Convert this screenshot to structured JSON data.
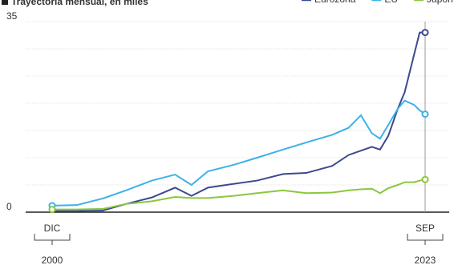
{
  "chart_data": {
    "type": "line",
    "title": "Trayectoria mensual, en miles",
    "x": [
      "2000-12",
      "2002-06",
      "2004-01",
      "2005-06",
      "2007-01",
      "2008-06",
      "2009-06",
      "2010-06",
      "2012-01",
      "2013-06",
      "2015-01",
      "2016-06",
      "2018-01",
      "2019-01",
      "2019-10",
      "2020-06",
      "2020-12",
      "2021-06",
      "2022-01",
      "2022-06",
      "2023-01",
      "2023-05",
      "2023-09"
    ],
    "series": [
      {
        "name": "Eurozona",
        "color": "#3b4a91",
        "values": [
          0.2,
          0.2,
          0.3,
          1.5,
          2.7,
          4.5,
          3,
          4.5,
          5.2,
          5.8,
          7,
          7.2,
          8.5,
          10.5,
          11.3,
          12,
          11.5,
          14,
          19,
          22,
          29,
          33,
          33
        ]
      },
      {
        "name": "EU",
        "color": "#3db2e8",
        "values": [
          1.2,
          1.3,
          2.5,
          4,
          5.8,
          6.9,
          5,
          7.5,
          8.7,
          10,
          11.5,
          12.8,
          14.2,
          15.5,
          17.8,
          14.5,
          13.5,
          16,
          19,
          20.5,
          19.7,
          18.7,
          18
        ]
      },
      {
        "name": "Japón",
        "color": "#8cc63f",
        "values": [
          0.5,
          0.5,
          0.6,
          1.5,
          2,
          2.8,
          2.6,
          2.6,
          3,
          3.5,
          4,
          3.5,
          3.6,
          4,
          4.2,
          4.3,
          3.5,
          4.4,
          5,
          5.5,
          5.5,
          5.8,
          6
        ]
      }
    ],
    "xlim": [
      "2000-12",
      "2023-09"
    ],
    "xticks": [
      {
        "value": "2000-12",
        "month": "DIC",
        "year": "2000"
      },
      {
        "value": "2023-09",
        "month": "SEP",
        "year": "2023"
      }
    ],
    "ylim": [
      0,
      35
    ],
    "yticks": [
      0,
      35
    ],
    "ygrid": [
      5,
      10,
      15,
      20,
      25,
      30,
      35
    ],
    "grid": true,
    "legend": "top-right"
  }
}
